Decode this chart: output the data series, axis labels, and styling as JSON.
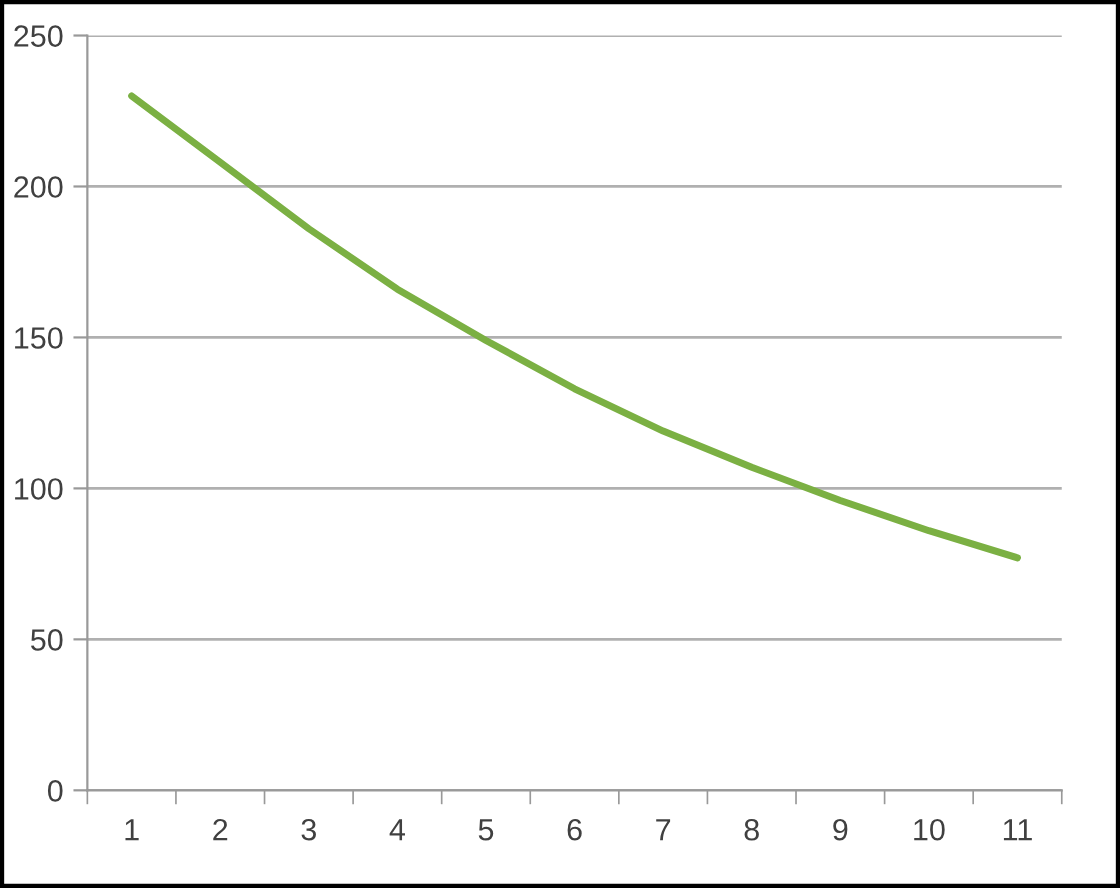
{
  "chart_data": {
    "type": "line",
    "categories": [
      "1",
      "2",
      "3",
      "4",
      "5",
      "6",
      "7",
      "8",
      "9",
      "10",
      "11"
    ],
    "series": [
      {
        "color": "#7bb043",
        "values": [
          230,
          208,
          186,
          166,
          149,
          133,
          119,
          107,
          96,
          86,
          77
        ]
      }
    ],
    "ylim": [
      0,
      250
    ],
    "yticks": [
      0,
      50,
      100,
      150,
      200,
      250
    ],
    "grid": "y",
    "marker": "none",
    "line_style": "solid"
  }
}
